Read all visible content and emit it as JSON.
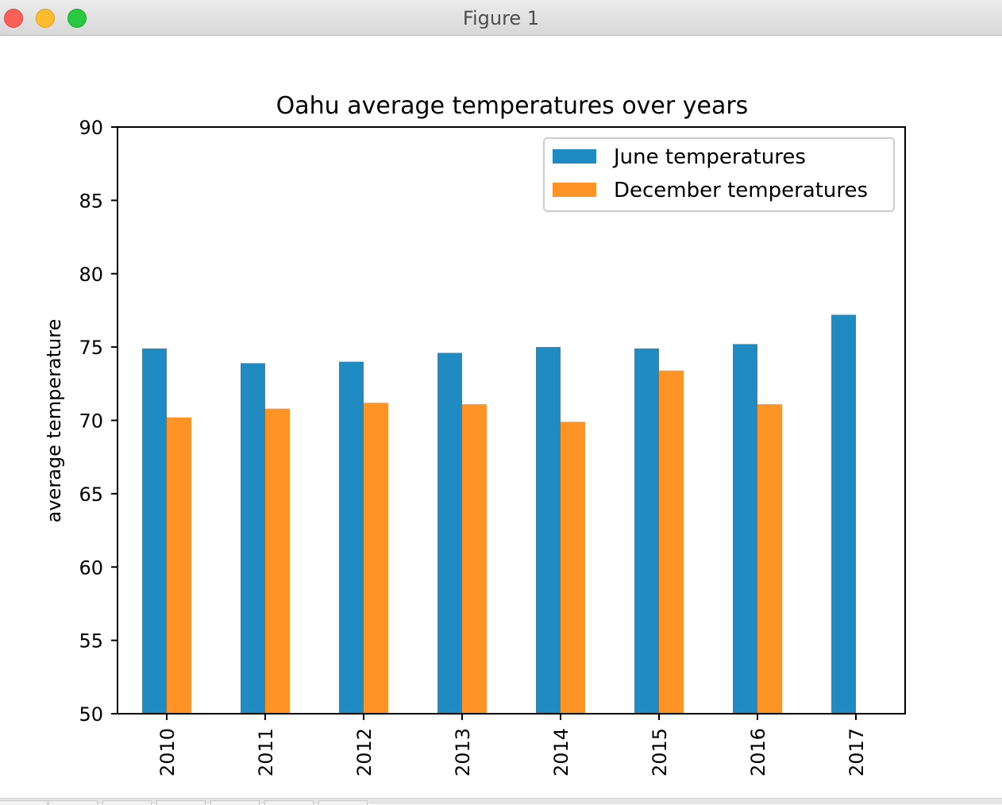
{
  "window": {
    "title": "Figure 1"
  },
  "colors": {
    "june": "#1f8bc2",
    "december": "#ff9326"
  },
  "chart_data": {
    "type": "bar",
    "title": "Oahu average temperatures over years",
    "xlabel": "",
    "ylabel": "average temperature",
    "ylim": [
      50,
      90
    ],
    "yticks": [
      "50",
      "55",
      "60",
      "65",
      "70",
      "75",
      "80",
      "85",
      "90"
    ],
    "categories": [
      "2010",
      "2011",
      "2012",
      "2013",
      "2014",
      "2015",
      "2016",
      "2017"
    ],
    "series": [
      {
        "name": "June temperatures",
        "color": "#1f8bc2",
        "values": [
          74.9,
          73.9,
          74.0,
          74.6,
          75.0,
          74.9,
          75.2,
          77.2
        ]
      },
      {
        "name": "December temperatures",
        "color": "#ff9326",
        "values": [
          70.2,
          70.8,
          71.2,
          71.1,
          69.9,
          73.4,
          71.1,
          null
        ]
      }
    ],
    "legend_position": "top-right",
    "grid": false
  }
}
